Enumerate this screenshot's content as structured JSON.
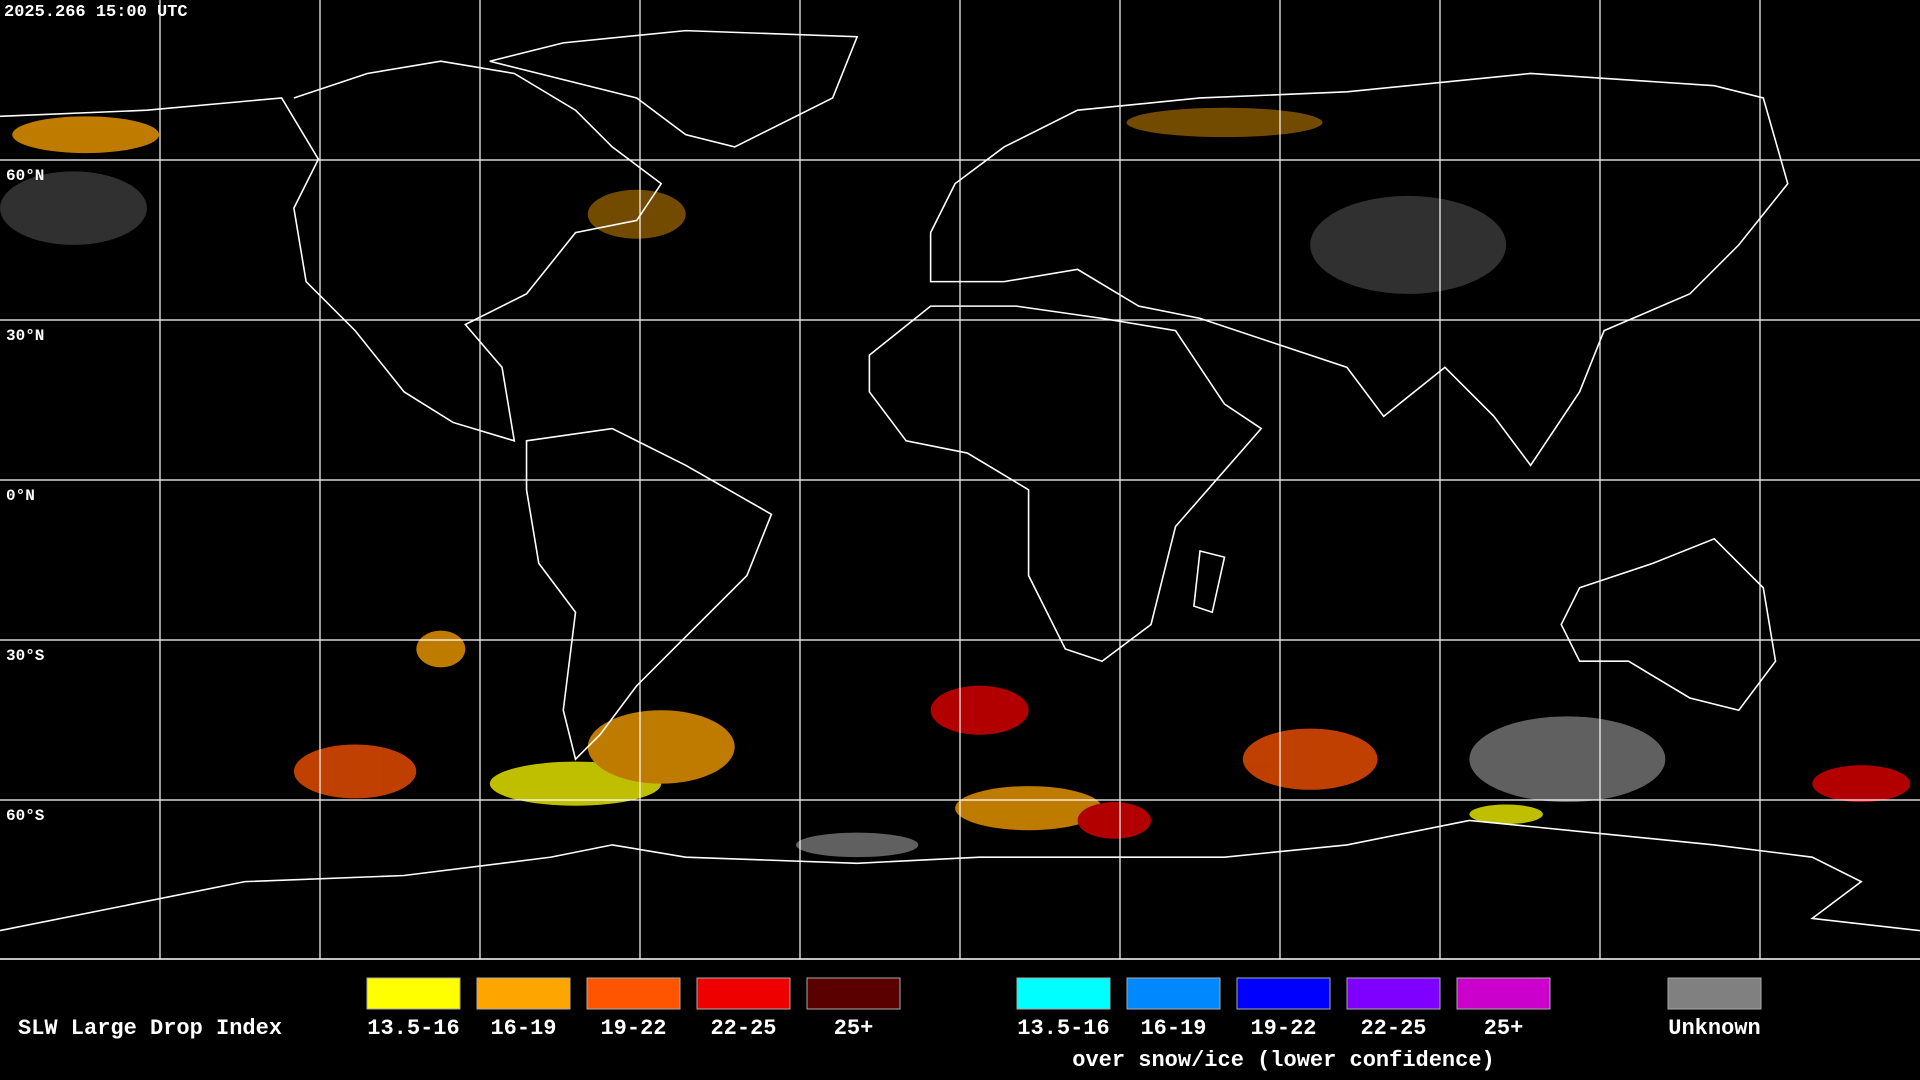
{
  "timestamp": "2025.266 15:00 UTC",
  "latitude_labels": [
    "60°N",
    "30°N",
    "0°N",
    "30°S",
    "60°S"
  ],
  "legend": {
    "title": "SLW Large Drop Index",
    "groups": [
      {
        "items": [
          {
            "label": "13.5-16",
            "color": "#ffff00"
          },
          {
            "label": "16-19",
            "color": "#ffa500"
          },
          {
            "label": "19-22",
            "color": "#ff5500"
          },
          {
            "label": "22-25",
            "color": "#ee0000"
          },
          {
            "label": "25+",
            "color": "#5a0000"
          }
        ]
      },
      {
        "items": [
          {
            "label": "13.5-16",
            "color": "#00ffff"
          },
          {
            "label": "16-19",
            "color": "#0088ff"
          },
          {
            "label": "19-22",
            "color": "#0000ff"
          },
          {
            "label": "22-25",
            "color": "#7f00ff"
          },
          {
            "label": "25+",
            "color": "#cc00cc"
          }
        ],
        "caption": "over snow/ice (lower confidence)"
      },
      {
        "items": [
          {
            "label": "Unknown",
            "color": "#808080"
          }
        ]
      }
    ]
  }
}
